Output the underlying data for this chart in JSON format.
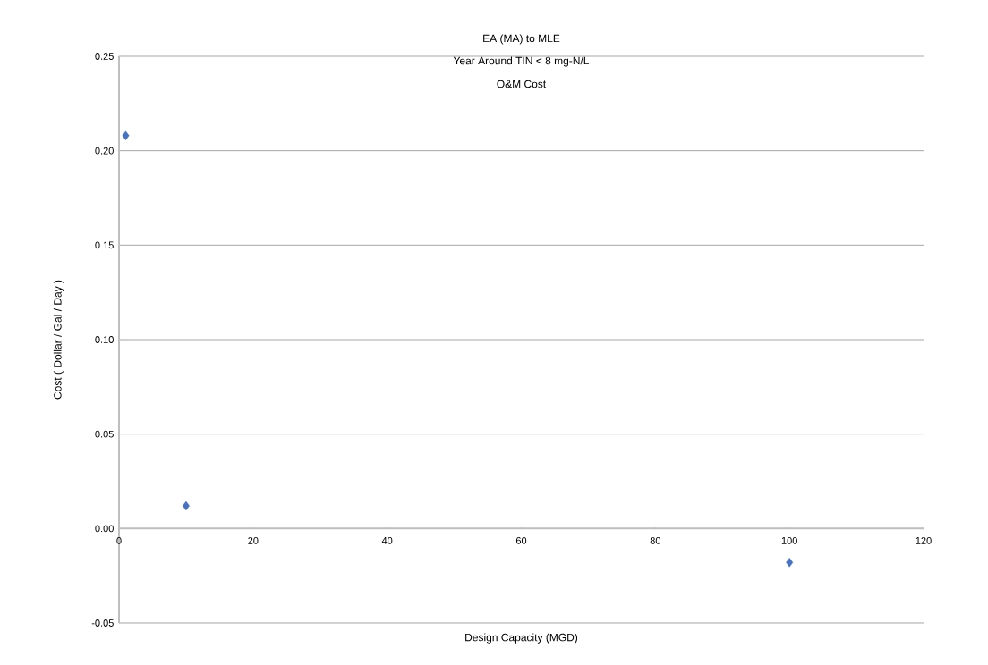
{
  "chart_data": {
    "type": "scatter",
    "title": "EA (MA) to MLE",
    "subtitle": "Year Around TIN < 8 mg-N/L",
    "annotations": [
      "O&M Cost"
    ],
    "xlabel": "Design Capacity (MGD)",
    "ylabel": "Cost ( Dollar / Gal / Day )",
    "x": [
      1,
      10,
      100
    ],
    "series": [
      {
        "color": "#4472c4",
        "values": [
          0.208,
          0.012,
          -0.018
        ]
      }
    ],
    "marker": "diamond",
    "grid": "y",
    "xlim": [
      0,
      120
    ],
    "xticks": [
      0,
      20,
      40,
      60,
      80,
      100,
      120
    ],
    "ylim": [
      -0.05,
      0.25
    ],
    "yticks": [
      {
        "value": -0.05,
        "label": "-0.05"
      },
      {
        "value": 0,
        "label": "0.00"
      },
      {
        "value": 0.05,
        "label": "0.05"
      },
      {
        "value": 0.1,
        "label": "0.10"
      },
      {
        "value": 0.15,
        "label": "0.15"
      },
      {
        "value": 0.2,
        "label": "0.20"
      },
      {
        "value": 0.25,
        "label": "0.25"
      }
    ]
  }
}
